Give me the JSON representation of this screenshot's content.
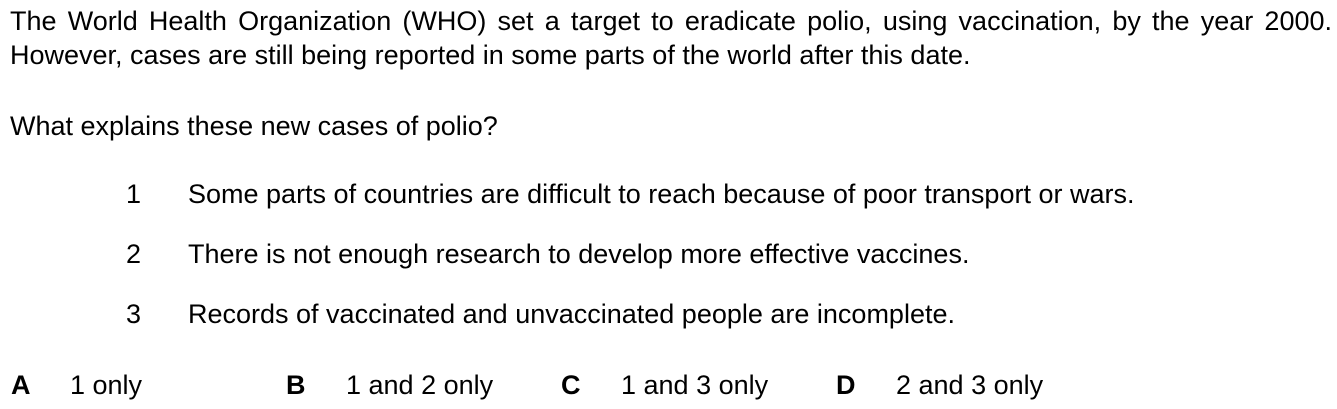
{
  "stem": "The World Health Organization (WHO) set a target to eradicate polio, using vaccination, by the year 2000. However, cases are still being reported in some parts of the world after this date.",
  "question": "What explains these new cases of polio?",
  "statements": [
    {
      "number": "1",
      "text": "Some parts of countries are difficult to reach because of poor transport or wars."
    },
    {
      "number": "2",
      "text": "There is not enough research to develop more effective vaccines."
    },
    {
      "number": "3",
      "text": "Records of vaccinated and unvaccinated people are incomplete."
    }
  ],
  "options": [
    {
      "letter": "A",
      "text": "1 only"
    },
    {
      "letter": "B",
      "text": "1 and 2 only"
    },
    {
      "letter": "C",
      "text": "1 and 3 only"
    },
    {
      "letter": "D",
      "text": "2 and 3 only"
    }
  ]
}
